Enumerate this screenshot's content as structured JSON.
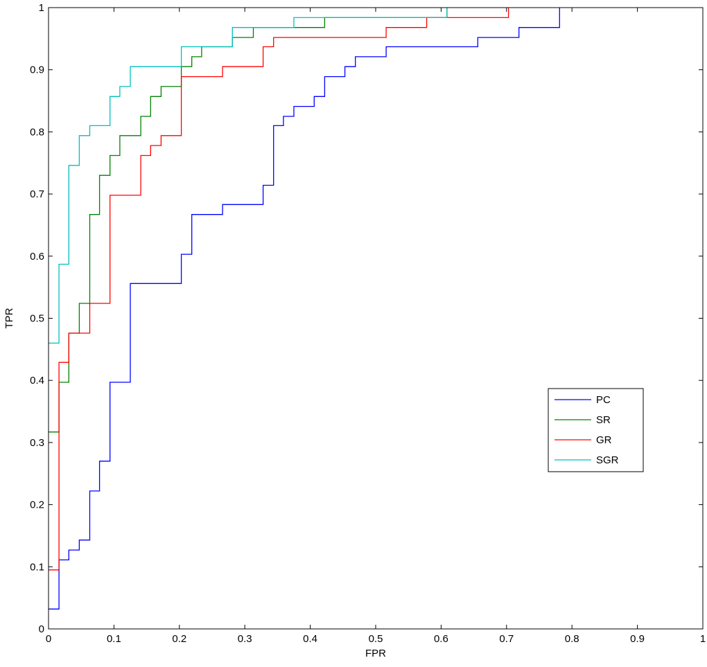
{
  "chart_data": {
    "type": "line",
    "title": "",
    "xlabel": "FPR",
    "ylabel": "TPR",
    "xlim": [
      0,
      1
    ],
    "ylim": [
      0,
      1
    ],
    "xticks": [
      0,
      0.1,
      0.2,
      0.3,
      0.4,
      0.5,
      0.6,
      0.7,
      0.8,
      0.9,
      1
    ],
    "yticks": [
      0,
      0.1,
      0.2,
      0.3,
      0.4,
      0.5,
      0.6,
      0.7,
      0.8,
      0.9,
      1
    ],
    "xtick_labels": [
      "0",
      "0.1",
      "0.2",
      "0.3",
      "0.4",
      "0.5",
      "0.6",
      "0.7",
      "0.8",
      "0.9",
      "1"
    ],
    "ytick_labels": [
      "0",
      "0.1",
      "0.2",
      "0.3",
      "0.4",
      "0.5",
      "0.6",
      "0.7",
      "0.8",
      "0.9",
      "1"
    ],
    "grid": false,
    "legend_position": "lower-right",
    "series": [
      {
        "name": "PC",
        "color": "#0000ff",
        "step": true,
        "points": [
          [
            0,
            0.032
          ],
          [
            0.016,
            0.032
          ],
          [
            0.016,
            0.111
          ],
          [
            0.031,
            0.111
          ],
          [
            0.031,
            0.127
          ],
          [
            0.047,
            0.127
          ],
          [
            0.047,
            0.143
          ],
          [
            0.063,
            0.143
          ],
          [
            0.063,
            0.222
          ],
          [
            0.078,
            0.222
          ],
          [
            0.078,
            0.27
          ],
          [
            0.094,
            0.27
          ],
          [
            0.094,
            0.397
          ],
          [
            0.125,
            0.397
          ],
          [
            0.125,
            0.556
          ],
          [
            0.203,
            0.556
          ],
          [
            0.203,
            0.603
          ],
          [
            0.219,
            0.603
          ],
          [
            0.219,
            0.667
          ],
          [
            0.266,
            0.667
          ],
          [
            0.266,
            0.683
          ],
          [
            0.328,
            0.683
          ],
          [
            0.328,
            0.714
          ],
          [
            0.344,
            0.714
          ],
          [
            0.344,
            0.81
          ],
          [
            0.359,
            0.81
          ],
          [
            0.359,
            0.825
          ],
          [
            0.375,
            0.825
          ],
          [
            0.375,
            0.841
          ],
          [
            0.406,
            0.841
          ],
          [
            0.406,
            0.857
          ],
          [
            0.422,
            0.857
          ],
          [
            0.422,
            0.889
          ],
          [
            0.453,
            0.889
          ],
          [
            0.453,
            0.905
          ],
          [
            0.469,
            0.905
          ],
          [
            0.469,
            0.921
          ],
          [
            0.516,
            0.921
          ],
          [
            0.516,
            0.937
          ],
          [
            0.656,
            0.937
          ],
          [
            0.656,
            0.952
          ],
          [
            0.719,
            0.952
          ],
          [
            0.719,
            0.968
          ],
          [
            0.781,
            0.968
          ],
          [
            0.781,
            1.0
          ]
        ]
      },
      {
        "name": "SR",
        "color": "#008000",
        "step": true,
        "points": [
          [
            0,
            0.317
          ],
          [
            0.016,
            0.317
          ],
          [
            0.016,
            0.397
          ],
          [
            0.031,
            0.397
          ],
          [
            0.031,
            0.476
          ],
          [
            0.047,
            0.476
          ],
          [
            0.047,
            0.524
          ],
          [
            0.063,
            0.524
          ],
          [
            0.063,
            0.667
          ],
          [
            0.078,
            0.667
          ],
          [
            0.078,
            0.73
          ],
          [
            0.094,
            0.73
          ],
          [
            0.094,
            0.762
          ],
          [
            0.109,
            0.762
          ],
          [
            0.109,
            0.794
          ],
          [
            0.141,
            0.794
          ],
          [
            0.141,
            0.825
          ],
          [
            0.156,
            0.825
          ],
          [
            0.156,
            0.857
          ],
          [
            0.172,
            0.857
          ],
          [
            0.172,
            0.873
          ],
          [
            0.203,
            0.873
          ],
          [
            0.203,
            0.905
          ],
          [
            0.219,
            0.905
          ],
          [
            0.219,
            0.921
          ],
          [
            0.234,
            0.921
          ],
          [
            0.234,
            0.937
          ],
          [
            0.281,
            0.937
          ],
          [
            0.281,
            0.952
          ],
          [
            0.313,
            0.952
          ],
          [
            0.313,
            0.968
          ],
          [
            0.422,
            0.968
          ],
          [
            0.422,
            0.984
          ],
          [
            0.609,
            0.984
          ],
          [
            0.609,
            1.0
          ]
        ]
      },
      {
        "name": "GR",
        "color": "#ff0000",
        "step": true,
        "points": [
          [
            0,
            0.095
          ],
          [
            0.016,
            0.095
          ],
          [
            0.016,
            0.429
          ],
          [
            0.031,
            0.429
          ],
          [
            0.031,
            0.476
          ],
          [
            0.063,
            0.476
          ],
          [
            0.063,
            0.524
          ],
          [
            0.094,
            0.524
          ],
          [
            0.094,
            0.698
          ],
          [
            0.141,
            0.698
          ],
          [
            0.141,
            0.762
          ],
          [
            0.156,
            0.762
          ],
          [
            0.156,
            0.778
          ],
          [
            0.172,
            0.778
          ],
          [
            0.172,
            0.794
          ],
          [
            0.203,
            0.794
          ],
          [
            0.203,
            0.889
          ],
          [
            0.266,
            0.889
          ],
          [
            0.266,
            0.905
          ],
          [
            0.328,
            0.905
          ],
          [
            0.328,
            0.937
          ],
          [
            0.344,
            0.937
          ],
          [
            0.344,
            0.952
          ],
          [
            0.516,
            0.952
          ],
          [
            0.516,
            0.968
          ],
          [
            0.578,
            0.968
          ],
          [
            0.578,
            0.984
          ],
          [
            0.703,
            0.984
          ],
          [
            0.703,
            1.0
          ]
        ]
      },
      {
        "name": "SGR",
        "color": "#00bfbf",
        "step": true,
        "points": [
          [
            0,
            0.46
          ],
          [
            0.016,
            0.46
          ],
          [
            0.016,
            0.587
          ],
          [
            0.031,
            0.587
          ],
          [
            0.031,
            0.746
          ],
          [
            0.047,
            0.746
          ],
          [
            0.047,
            0.794
          ],
          [
            0.063,
            0.794
          ],
          [
            0.063,
            0.81
          ],
          [
            0.094,
            0.81
          ],
          [
            0.094,
            0.857
          ],
          [
            0.109,
            0.857
          ],
          [
            0.109,
            0.873
          ],
          [
            0.125,
            0.873
          ],
          [
            0.125,
            0.905
          ],
          [
            0.203,
            0.905
          ],
          [
            0.203,
            0.937
          ],
          [
            0.281,
            0.937
          ],
          [
            0.281,
            0.968
          ],
          [
            0.375,
            0.968
          ],
          [
            0.375,
            0.984
          ],
          [
            0.609,
            0.984
          ],
          [
            0.609,
            1.0
          ]
        ]
      }
    ]
  }
}
